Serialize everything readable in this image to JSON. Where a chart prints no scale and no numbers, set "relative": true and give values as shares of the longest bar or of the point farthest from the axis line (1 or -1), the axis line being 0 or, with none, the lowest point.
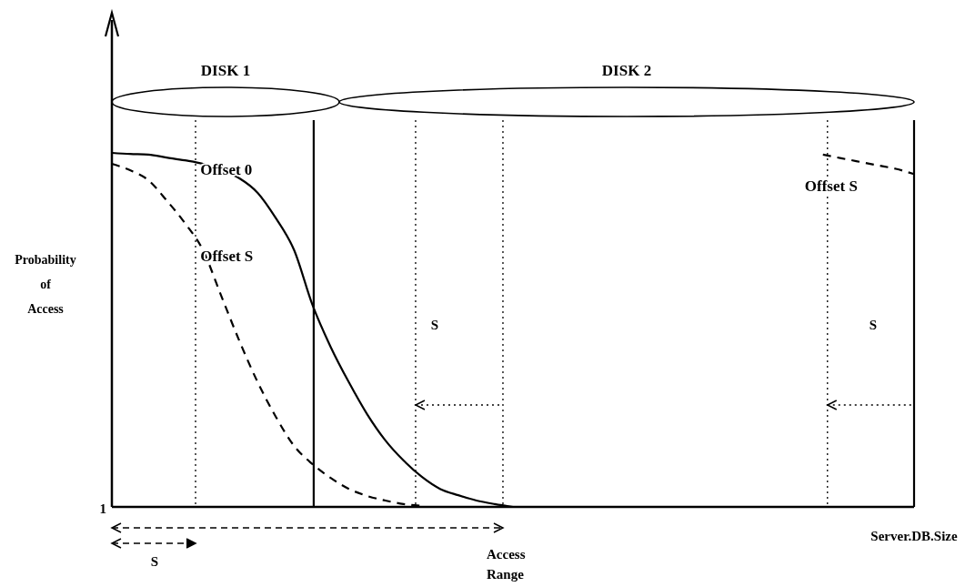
{
  "chart_data": {
    "type": "line",
    "relative": true,
    "xlabel": "Server.DB.Size",
    "ylabel": "Probability of Access",
    "categories": [
      null,
      null,
      null,
      null,
      null,
      null,
      null,
      null,
      null,
      null,
      null,
      null,
      null,
      null,
      null,
      null,
      null,
      null,
      null,
      null,
      null,
      null,
      null,
      null,
      null,
      null,
      null,
      null,
      null,
      null,
      null,
      null,
      null,
      null,
      null,
      null,
      null,
      null,
      null,
      null,
      null,
      null,
      null,
      null,
      null
    ],
    "series": [
      {
        "name": "Offset 0",
        "color": "#000000",
        "line_style": "solid",
        "values": [
          1.0,
          0.997,
          0.995,
          0.987,
          0.979,
          0.969,
          0.951,
          0.928,
          0.887,
          0.815,
          0.725,
          0.571,
          0.452,
          0.352,
          0.262,
          0.188,
          0.131,
          0.085,
          0.051,
          0.033,
          0.018,
          0.008,
          0,
          null,
          null,
          null,
          null,
          null,
          null,
          null,
          null,
          null,
          null,
          null,
          null,
          null,
          null,
          null,
          null,
          null,
          null,
          null,
          null,
          null,
          null
        ]
      },
      {
        "name": "Offset S",
        "color": "#000000",
        "line_style": "dashed",
        "values": [
          0.969,
          0.951,
          0.923,
          0.866,
          0.802,
          0.725,
          0.596,
          0.468,
          0.352,
          0.254,
          0.172,
          0.121,
          0.082,
          0.051,
          0.031,
          0.018,
          0.008,
          0.003,
          null,
          null,
          null,
          null,
          null,
          null,
          null,
          null,
          null,
          null,
          null,
          null,
          null,
          null,
          null,
          null,
          null,
          null,
          null,
          null,
          null,
          null,
          null,
          null,
          null,
          null,
          null
        ]
      },
      {
        "name": "Offset S",
        "color": "#000000",
        "line_style": "dashed",
        "values": [
          null,
          null,
          null,
          null,
          null,
          null,
          null,
          null,
          null,
          null,
          null,
          null,
          null,
          null,
          null,
          null,
          null,
          null,
          null,
          null,
          null,
          null,
          null,
          null,
          null,
          null,
          null,
          null,
          null,
          null,
          null,
          null,
          null,
          null,
          null,
          null,
          null,
          null,
          null,
          0.995,
          0.985,
          0.975,
          0.965,
          0.955,
          0.94
        ]
      }
    ],
    "annotations": [
      "DISK 1",
      "DISK 2",
      "S",
      "S",
      "S",
      "Access Range",
      "1"
    ]
  }
}
